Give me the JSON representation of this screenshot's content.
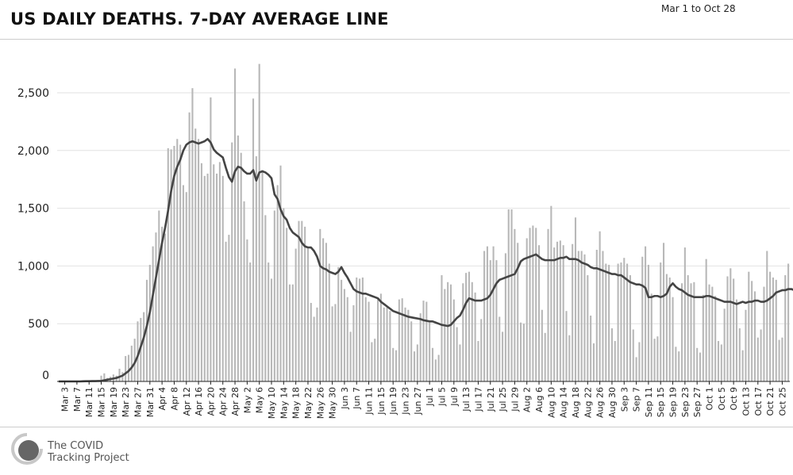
{
  "header": {
    "title": "US DAILY DEATHS. 7-DAY AVERAGE LINE",
    "date_range": "Mar 1 to Oct 28"
  },
  "footer": {
    "logo_line1": "The COVID",
    "logo_line2": "Tracking Project"
  },
  "colors": {
    "bar": "#b8b8b8",
    "line": "#444444",
    "grid": "#e2e2e2",
    "axis": "#222222"
  },
  "chart_data": {
    "type": "bar",
    "title": "US DAILY DEATHS. 7-DAY AVERAGE LINE",
    "xlabel": "",
    "ylabel": "",
    "ylim": [
      0,
      2800
    ],
    "yticks": [
      0,
      500,
      1000,
      1500,
      2000,
      2500
    ],
    "ytick_labels": [
      "0",
      "500",
      "1,000",
      "1,500",
      "2,000",
      "2,500"
    ],
    "grid": "horizontal",
    "x_start": "Mar 1",
    "x_tick_labels": [
      "Mar 3",
      "Mar 7",
      "Mar 11",
      "Mar 15",
      "Mar 19",
      "Mar 23",
      "Mar 27",
      "Mar 31",
      "Apr 4",
      "Apr 8",
      "Apr 12",
      "Apr 16",
      "Apr 20",
      "Apr 24",
      "Apr 28",
      "May 2",
      "May 6",
      "May 10",
      "May 14",
      "May 18",
      "May 22",
      "May 26",
      "May 30",
      "Jun 3",
      "Jun 7",
      "Jun 11",
      "Jun 15",
      "Jun 19",
      "Jun 23",
      "Jun 27",
      "Jul 1",
      "Jul 5",
      "Jul 9",
      "Jul 13",
      "Jul 17",
      "Jul 21",
      "Jul 25",
      "Jul 29",
      "Aug 2",
      "Aug 6",
      "Aug 10",
      "Aug 14",
      "Aug 18",
      "Aug 22",
      "Aug 26",
      "Aug 30",
      "Sep 3",
      "Sep 7",
      "Sep 11",
      "Sep 15",
      "Sep 19",
      "Sep 23",
      "Sep 27",
      "Oct 1",
      "Oct 5",
      "Oct 9",
      "Oct 13",
      "Oct 17",
      "Oct 21",
      "Oct 25"
    ],
    "x_tick_every": 4,
    "x_tick_offset": 2,
    "series": [
      {
        "kind": "bar",
        "values": [
          0,
          0,
          2,
          1,
          3,
          2,
          2,
          3,
          2,
          4,
          4,
          3,
          5,
          7,
          50,
          70,
          30,
          40,
          60,
          50,
          110,
          80,
          220,
          230,
          310,
          370,
          520,
          550,
          600,
          880,
          1010,
          1170,
          1290,
          1480,
          1340,
          1280,
          2020,
          2010,
          2040,
          2100,
          2050,
          1700,
          1640,
          2330,
          2540,
          2190,
          2100,
          1890,
          1780,
          1800,
          2460,
          1880,
          1800,
          1900,
          1780,
          1210,
          1270,
          2070,
          2710,
          2130,
          1980,
          1560,
          1230,
          1030,
          2450,
          1950,
          2750,
          1830,
          1440,
          1030,
          890,
          1480,
          1700,
          1870,
          1500,
          1330,
          840,
          840,
          1150,
          1390,
          1390,
          1340,
          1150,
          680,
          560,
          640,
          1320,
          1240,
          1200,
          1020,
          650,
          670,
          990,
          880,
          800,
          730,
          430,
          660,
          900,
          890,
          900,
          730,
          690,
          340,
          370,
          720,
          760,
          640,
          640,
          610,
          290,
          270,
          710,
          720,
          640,
          620,
          520,
          260,
          320,
          590,
          700,
          690,
          510,
          290,
          190,
          230,
          920,
          800,
          860,
          840,
          710,
          470,
          320,
          850,
          940,
          950,
          860,
          770,
          350,
          540,
          1130,
          1170,
          1050,
          1170,
          1050,
          560,
          430,
          1110,
          1490,
          1490,
          1320,
          1200,
          510,
          500,
          1240,
          1330,
          1350,
          1330,
          1180,
          620,
          420,
          1320,
          1520,
          1160,
          1210,
          1220,
          1180,
          610,
          400,
          1190,
          1420,
          1130,
          1130,
          1100,
          920,
          570,
          330,
          1140,
          1300,
          1130,
          1020,
          1010,
          460,
          350,
          1020,
          1030,
          1070,
          1020,
          920,
          450,
          210,
          340,
          1080,
          1170,
          1010,
          760,
          370,
          390,
          1030,
          1200,
          930,
          900,
          730,
          300,
          260,
          850,
          1160,
          920,
          850,
          860,
          290,
          250,
          750,
          1060,
          840,
          820,
          740,
          350,
          320,
          630,
          910,
          980,
          890,
          710,
          460,
          270,
          620,
          950,
          870,
          780,
          380,
          450,
          820,
          1130,
          950,
          900,
          880,
          360,
          380,
          920,
          1020
        ]
      },
      {
        "kind": "line",
        "name": "",
        "values": [
          0,
          0,
          0,
          0,
          0,
          0,
          0,
          0,
          1,
          2,
          2,
          3,
          3,
          4,
          4,
          10,
          15,
          20,
          25,
          30,
          40,
          50,
          70,
          90,
          120,
          160,
          220,
          300,
          380,
          480,
          600,
          750,
          900,
          1050,
          1200,
          1330,
          1480,
          1650,
          1780,
          1860,
          1920,
          2000,
          2050,
          2070,
          2080,
          2070,
          2060,
          2070,
          2080,
          2100,
          2070,
          2010,
          1980,
          1960,
          1940,
          1850,
          1770,
          1730,
          1820,
          1860,
          1850,
          1820,
          1800,
          1800,
          1830,
          1740,
          1810,
          1820,
          1810,
          1790,
          1760,
          1620,
          1580,
          1490,
          1430,
          1400,
          1330,
          1290,
          1270,
          1250,
          1200,
          1170,
          1160,
          1160,
          1130,
          1080,
          1000,
          980,
          970,
          950,
          940,
          930,
          950,
          990,
          940,
          900,
          850,
          800,
          780,
          770,
          760,
          760,
          750,
          740,
          730,
          720,
          690,
          670,
          650,
          630,
          610,
          600,
          590,
          580,
          570,
          560,
          555,
          550,
          545,
          540,
          530,
          525,
          520,
          520,
          510,
          500,
          490,
          485,
          480,
          490,
          520,
          550,
          570,
          620,
          680,
          720,
          710,
          700,
          700,
          700,
          710,
          720,
          750,
          800,
          850,
          880,
          890,
          900,
          910,
          920,
          930,
          980,
          1040,
          1060,
          1070,
          1080,
          1090,
          1100,
          1080,
          1060,
          1050,
          1050,
          1050,
          1050,
          1060,
          1070,
          1070,
          1080,
          1060,
          1060,
          1060,
          1050,
          1030,
          1020,
          1010,
          990,
          980,
          980,
          970,
          960,
          950,
          940,
          930,
          930,
          920,
          920,
          900,
          880,
          860,
          850,
          840,
          840,
          830,
          810,
          730,
          730,
          740,
          740,
          730,
          740,
          760,
          820,
          850,
          820,
          800,
          790,
          770,
          750,
          740,
          730,
          730,
          730,
          730,
          740,
          740,
          730,
          720,
          710,
          700,
          690,
          690,
          690,
          680,
          670,
          680,
          690,
          680,
          690,
          690,
          700,
          700,
          690,
          690,
          700,
          720,
          740,
          770,
          780,
          790,
          790,
          800,
          800,
          790,
          790,
          790
        ]
      }
    ]
  }
}
